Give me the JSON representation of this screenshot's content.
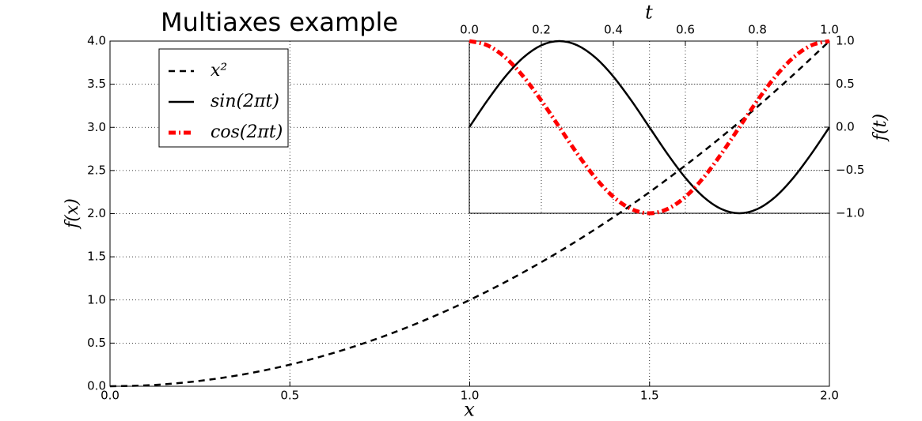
{
  "chart_data": [
    {
      "type": "line",
      "title": "Multiaxes example",
      "xlabel": "x",
      "ylabel": "f(x)",
      "x": [
        0,
        0.1,
        0.2,
        0.3,
        0.4,
        0.5,
        0.6,
        0.7,
        0.8,
        0.9,
        1.0,
        1.1,
        1.2,
        1.3,
        1.4,
        1.5,
        1.6,
        1.7,
        1.8,
        1.9,
        2.0
      ],
      "series": [
        {
          "name": "x²",
          "color": "#000000",
          "linestyle": "dashed",
          "values": [
            0,
            0.01,
            0.04,
            0.09,
            0.16,
            0.25,
            0.36,
            0.49,
            0.64,
            0.81,
            1,
            1.21,
            1.44,
            1.69,
            1.96,
            2.25,
            2.56,
            2.89,
            3.24,
            3.61,
            4
          ]
        }
      ],
      "xlim": [
        0,
        2
      ],
      "ylim": [
        0,
        4
      ],
      "xticks": [
        {
          "value": 0,
          "label": "0.0"
        },
        0.5,
        {
          "value": 1,
          "label": "1.0"
        },
        1.5,
        {
          "value": 2,
          "label": "2.0"
        }
      ],
      "yticks": [
        {
          "value": 0,
          "label": "0.0"
        },
        0.5,
        {
          "value": 1,
          "label": "1.0"
        },
        1.5,
        {
          "value": 2,
          "label": "2.0"
        },
        2.5,
        {
          "value": 3,
          "label": "3.0"
        },
        3.5,
        {
          "value": 4,
          "label": "4.0"
        }
      ],
      "xaxis_position": "bottom",
      "yaxis_position": "left",
      "grid": true,
      "legend": "upper left"
    },
    {
      "type": "line",
      "xlabel": "t",
      "ylabel": "f(t)",
      "x": [
        0,
        0.05,
        0.1,
        0.15,
        0.2,
        0.25,
        0.3,
        0.35,
        0.4,
        0.45,
        0.5,
        0.55,
        0.6,
        0.65,
        0.7,
        0.75,
        0.8,
        0.85,
        0.9,
        0.95,
        1.0
      ],
      "series": [
        {
          "name": "sin(2πt)",
          "color": "#000000",
          "linestyle": "solid",
          "values": [
            0,
            0.309,
            0.588,
            0.809,
            0.951,
            1,
            0.951,
            0.809,
            0.588,
            0.309,
            0,
            -0.309,
            -0.588,
            -0.809,
            -0.951,
            -1,
            -0.951,
            -0.809,
            -0.588,
            -0.309,
            0
          ]
        },
        {
          "name": "cos(2πt)",
          "color": "#ff0000",
          "linestyle": "dashdot",
          "values": [
            1,
            0.951,
            0.809,
            0.588,
            0.309,
            0,
            -0.309,
            -0.588,
            -0.809,
            -0.951,
            -1,
            -0.951,
            -0.809,
            -0.588,
            -0.309,
            0,
            0.309,
            0.588,
            0.809,
            0.951,
            1
          ]
        }
      ],
      "xlim": [
        0,
        1
      ],
      "ylim": [
        -1,
        1
      ],
      "xticks": [
        {
          "value": 0,
          "label": "0.0"
        },
        0.2,
        0.4,
        0.6,
        0.8,
        {
          "value": 1,
          "label": "1.0"
        }
      ],
      "yticks": [
        {
          "value": -1,
          "label": "−1.0"
        },
        {
          "value": -0.5,
          "label": "−0.5"
        },
        {
          "value": 0,
          "label": "0.0"
        },
        0.5,
        {
          "value": 1,
          "label": "1.0"
        }
      ],
      "xaxis_position": "top",
      "yaxis_position": "right",
      "grid": true
    }
  ]
}
